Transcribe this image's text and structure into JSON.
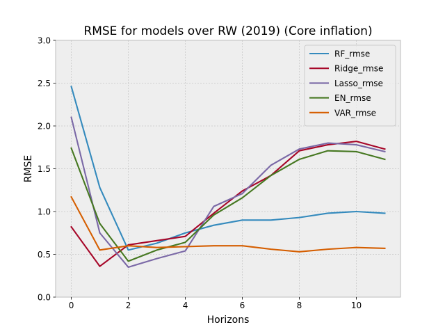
{
  "chart_data": {
    "type": "line",
    "title": "RMSE for models over RW (2019) (Core inflation)",
    "xlabel": "Horizons",
    "ylabel": "RMSE",
    "xlim": [
      -0.55,
      11.55
    ],
    "ylim": [
      0,
      3.0
    ],
    "xticks": [
      0,
      2,
      4,
      6,
      8,
      10
    ],
    "yticks": [
      0.0,
      0.5,
      1.0,
      1.5,
      2.0,
      2.5,
      3.0
    ],
    "xtick_labels": [
      "0",
      "2",
      "4",
      "6",
      "8",
      "10"
    ],
    "ytick_labels": [
      "0.0",
      "0.5",
      "1.0",
      "1.5",
      "2.0",
      "2.5",
      "3.0"
    ],
    "grid": true,
    "legend_position": "top-right",
    "x": [
      0,
      1,
      2,
      3,
      4,
      5,
      6,
      7,
      8,
      9,
      10,
      11
    ],
    "series": [
      {
        "name": "RF_rmse",
        "color": "#348ABD",
        "values": [
          2.46,
          1.28,
          0.55,
          0.63,
          0.75,
          0.84,
          0.9,
          0.9,
          0.93,
          0.98,
          1.0,
          0.98
        ]
      },
      {
        "name": "Ridge_rmse",
        "color": "#A60628",
        "values": [
          0.82,
          0.36,
          0.61,
          0.66,
          0.71,
          0.98,
          1.24,
          1.42,
          1.71,
          1.78,
          1.82,
          1.73
        ]
      },
      {
        "name": "Lasso_rmse",
        "color": "#7A68A6",
        "values": [
          2.1,
          0.75,
          0.35,
          0.45,
          0.54,
          1.06,
          1.21,
          1.54,
          1.73,
          1.8,
          1.78,
          1.7
        ]
      },
      {
        "name": "EN_rmse",
        "color": "#467821",
        "values": [
          1.74,
          0.86,
          0.42,
          0.55,
          0.64,
          0.96,
          1.16,
          1.42,
          1.61,
          1.71,
          1.7,
          1.61
        ]
      },
      {
        "name": "VAR_rmse",
        "color": "#D55E00",
        "values": [
          1.17,
          0.55,
          0.6,
          0.58,
          0.59,
          0.6,
          0.6,
          0.56,
          0.53,
          0.56,
          0.58,
          0.57
        ]
      }
    ]
  }
}
